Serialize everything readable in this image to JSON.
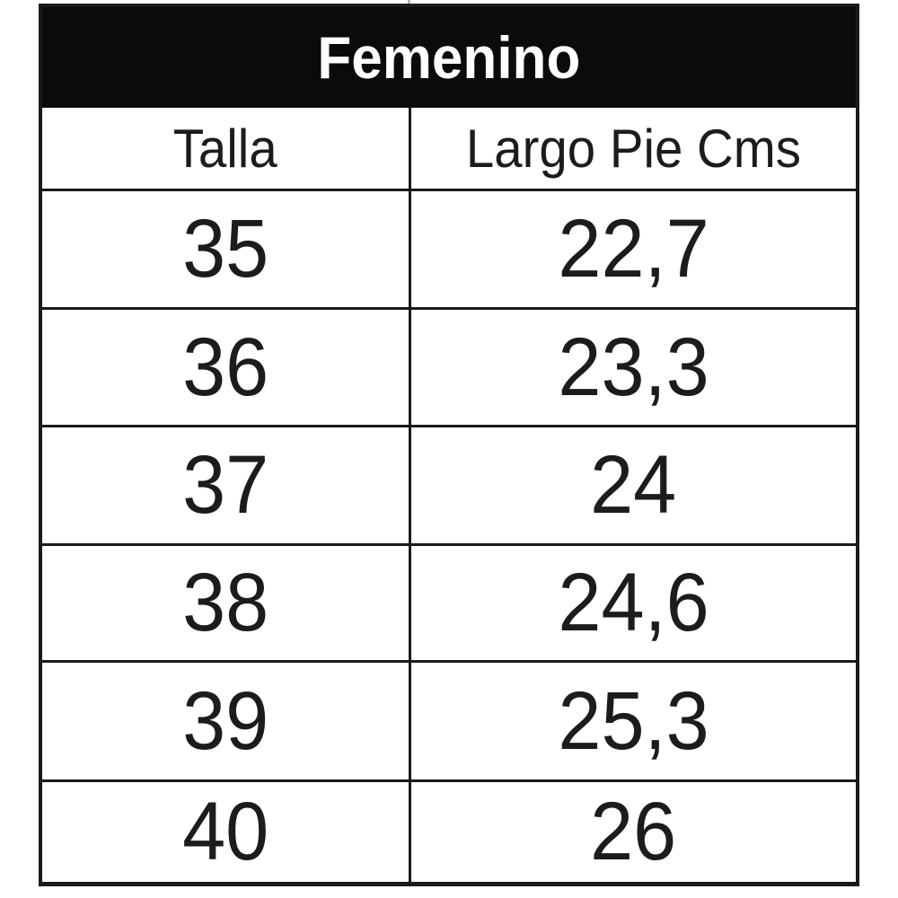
{
  "table": {
    "title": "Femenino",
    "columns": [
      "Talla",
      "Largo Pie Cms"
    ],
    "rows": [
      {
        "talla": "35",
        "largo": "22,7"
      },
      {
        "talla": "36",
        "largo": "23,3"
      },
      {
        "talla": "37",
        "largo": "24"
      },
      {
        "talla": "38",
        "largo": "24,6"
      },
      {
        "talla": "39",
        "largo": "25,3"
      },
      {
        "talla": "40",
        "largo": "26"
      }
    ],
    "colors": {
      "title_bg": "#0b0b0b",
      "title_text": "#ffffff",
      "border": "#1a1a1a",
      "cell_text": "#1c1c1c",
      "background": "#ffffff"
    }
  },
  "chart_data": {
    "type": "table",
    "title": "Femenino",
    "columns": [
      "Talla",
      "Largo Pie Cms"
    ],
    "rows": [
      [
        "35",
        "22,7"
      ],
      [
        "36",
        "23,3"
      ],
      [
        "37",
        "24"
      ],
      [
        "38",
        "24,6"
      ],
      [
        "39",
        "25,3"
      ],
      [
        "40",
        "26"
      ]
    ]
  }
}
